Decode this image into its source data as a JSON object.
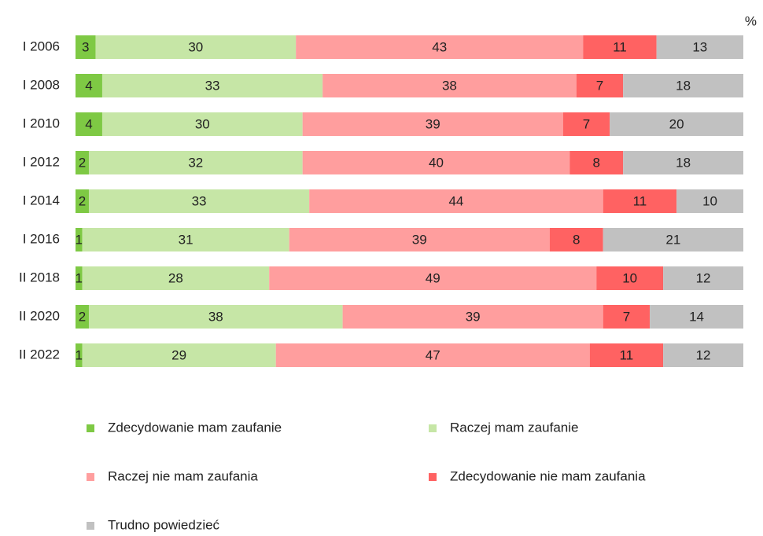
{
  "chart_data": {
    "type": "stacked-bar-horizontal",
    "unit": "%",
    "categories": [
      "I 2006",
      "I 2008",
      "I 2010",
      "I 2012",
      "I 2014",
      "I 2016",
      "II 2018",
      "II 2020",
      "II 2022"
    ],
    "series": [
      {
        "name": "Zdecydowanie mam zaufanie",
        "color": "#7ec944",
        "values": [
          3,
          4,
          4,
          2,
          2,
          1,
          1,
          2,
          1
        ]
      },
      {
        "name": "Raczej mam zaufanie",
        "color": "#c6e6a6",
        "values": [
          30,
          33,
          30,
          32,
          33,
          31,
          28,
          38,
          29
        ]
      },
      {
        "name": "Raczej nie mam zaufania",
        "color": "#ff9e9e",
        "values": [
          43,
          38,
          39,
          40,
          44,
          39,
          49,
          39,
          47
        ]
      },
      {
        "name": "Zdecydowanie nie mam zaufania",
        "color": "#ff6262",
        "values": [
          11,
          7,
          7,
          8,
          11,
          8,
          10,
          7,
          11
        ]
      },
      {
        "name": "Trudno powiedzieć",
        "color": "#c1c1c1",
        "values": [
          13,
          18,
          20,
          18,
          10,
          21,
          12,
          14,
          12
        ]
      }
    ]
  }
}
